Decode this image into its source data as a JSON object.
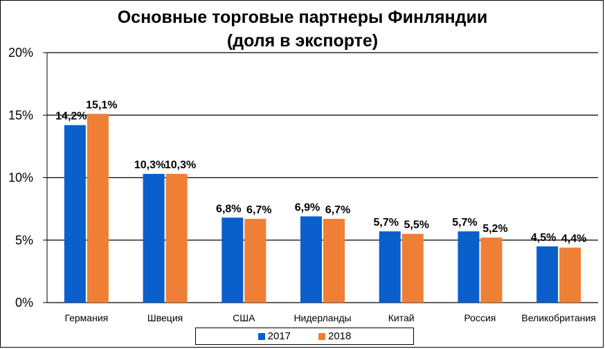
{
  "chart_data": {
    "type": "bar",
    "title": "Основные торговые партнеры Финляндии (доля в экспорте)",
    "title_lines": [
      "Основные торговые партнеры Финляндии",
      "(доля в экспорте)"
    ],
    "categories": [
      "Германия",
      "Швеция",
      "США",
      "Нидерланды",
      "Китай",
      "Россия",
      "Великобритания"
    ],
    "series": [
      {
        "name": "2017",
        "color": "#0a5fcc",
        "values": [
          14.2,
          10.3,
          6.8,
          6.9,
          5.7,
          5.7,
          4.5
        ],
        "labels": [
          "14,2%",
          "10,3%",
          "6,8%",
          "6,9%",
          "5,7%",
          "5,7%",
          "4,5%"
        ]
      },
      {
        "name": "2018",
        "color": "#ee7f35",
        "values": [
          15.1,
          10.3,
          6.7,
          6.7,
          5.5,
          5.2,
          4.4
        ],
        "labels": [
          "15,1%",
          "10,3%",
          "6,7%",
          "6,7%",
          "5,5%",
          "5,2%",
          "4,4%"
        ]
      }
    ],
    "ylim": [
      0,
      20
    ],
    "yticks": [
      0,
      5,
      10,
      15,
      20
    ],
    "ytick_labels": [
      "0%",
      "5%",
      "10%",
      "15%",
      "20%"
    ],
    "grid": true,
    "legend_position": "bottom"
  }
}
